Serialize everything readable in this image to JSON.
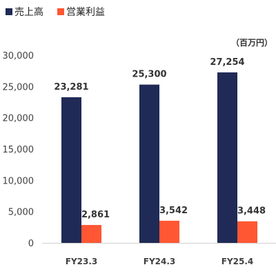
{
  "chart_data": {
    "type": "bar",
    "unit_label": "（百万円）",
    "categories": [
      "FY23.3",
      "FY24.3",
      "FY25.4"
    ],
    "series": [
      {
        "name": "売上高",
        "color": "#1f2a56",
        "values": [
          23281,
          25300,
          27254
        ],
        "labels": [
          "23,281",
          "25,300",
          "27,254"
        ]
      },
      {
        "name": "営業利益",
        "color": "#ff5733",
        "values": [
          2861,
          3542,
          3448
        ],
        "labels": [
          "2,861",
          "3,542",
          "3,448"
        ]
      }
    ],
    "yticks": [
      0,
      5000,
      10000,
      15000,
      20000,
      25000,
      30000
    ],
    "ytick_labels": [
      "0",
      "5,000",
      "10,000",
      "15,000",
      "20,000",
      "25,000",
      "30,000"
    ],
    "ylim": [
      0,
      30000
    ],
    "grid": false,
    "legend_position": "top-left"
  }
}
